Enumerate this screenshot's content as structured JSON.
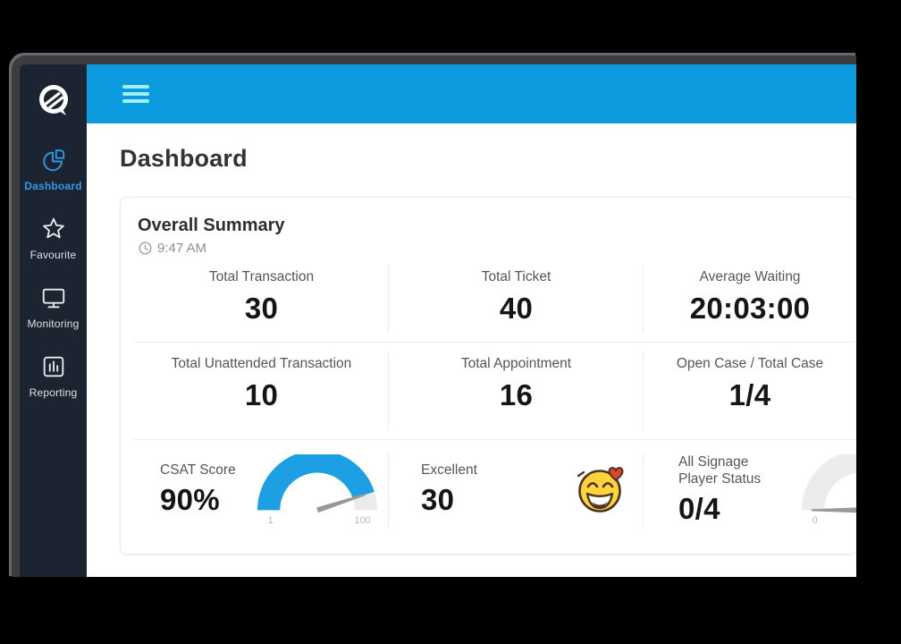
{
  "colors": {
    "header_blue": "#0D9BDF",
    "sidebar_bg": "#1B2430",
    "accent_blue": "#2D9CEA",
    "gauge_blue": "#1C9FE3"
  },
  "header": {
    "menu_icon": "hamburger-icon"
  },
  "sidebar": {
    "logo": "brand-logo",
    "items": [
      {
        "label": "Dashboard",
        "icon": "pie-chart-icon",
        "active": true
      },
      {
        "label": "Favourite",
        "icon": "star-icon",
        "active": false
      },
      {
        "label": "Monitoring",
        "icon": "monitor-icon",
        "active": false
      },
      {
        "label": "Reporting",
        "icon": "bar-chart-icon",
        "active": false
      }
    ]
  },
  "page": {
    "title": "Dashboard"
  },
  "summary": {
    "title": "Overall Summary",
    "time": "9:47 AM",
    "rows": [
      {
        "cells": [
          {
            "label": "Total Transaction",
            "value": "30"
          },
          {
            "label": "Total Ticket",
            "value": "40"
          },
          {
            "label": "Average Waiting",
            "value": "20:03:00"
          }
        ]
      },
      {
        "cells": [
          {
            "label": "Total Unattended Transaction",
            "value": "10"
          },
          {
            "label": "Total Appointment",
            "value": "16"
          },
          {
            "label": "Open Case / Total Case",
            "value": "1/4"
          }
        ]
      }
    ],
    "bottom": {
      "csat": {
        "label": "CSAT Score",
        "value": "90%"
      },
      "csat_gauge": {
        "type": "gauge",
        "percent": 90,
        "min_label": "1",
        "max_label": "100",
        "fill_color": "#1C9FE3",
        "track_color": "#ebebeb",
        "needle_color": "#97999b"
      },
      "excellent": {
        "label": "Excellent",
        "value": "30"
      },
      "emoji": "laughing-face-with-heart-emoji",
      "signage": {
        "label_line1": "All Signage",
        "label_line2": "Player Status",
        "value": "0/4"
      },
      "signage_gauge": {
        "type": "gauge",
        "percent": 0,
        "min_label": "0",
        "max_label": "",
        "fill_color": "#1C9FE3",
        "track_color": "#edecec",
        "needle_color": "#97999b"
      }
    }
  }
}
